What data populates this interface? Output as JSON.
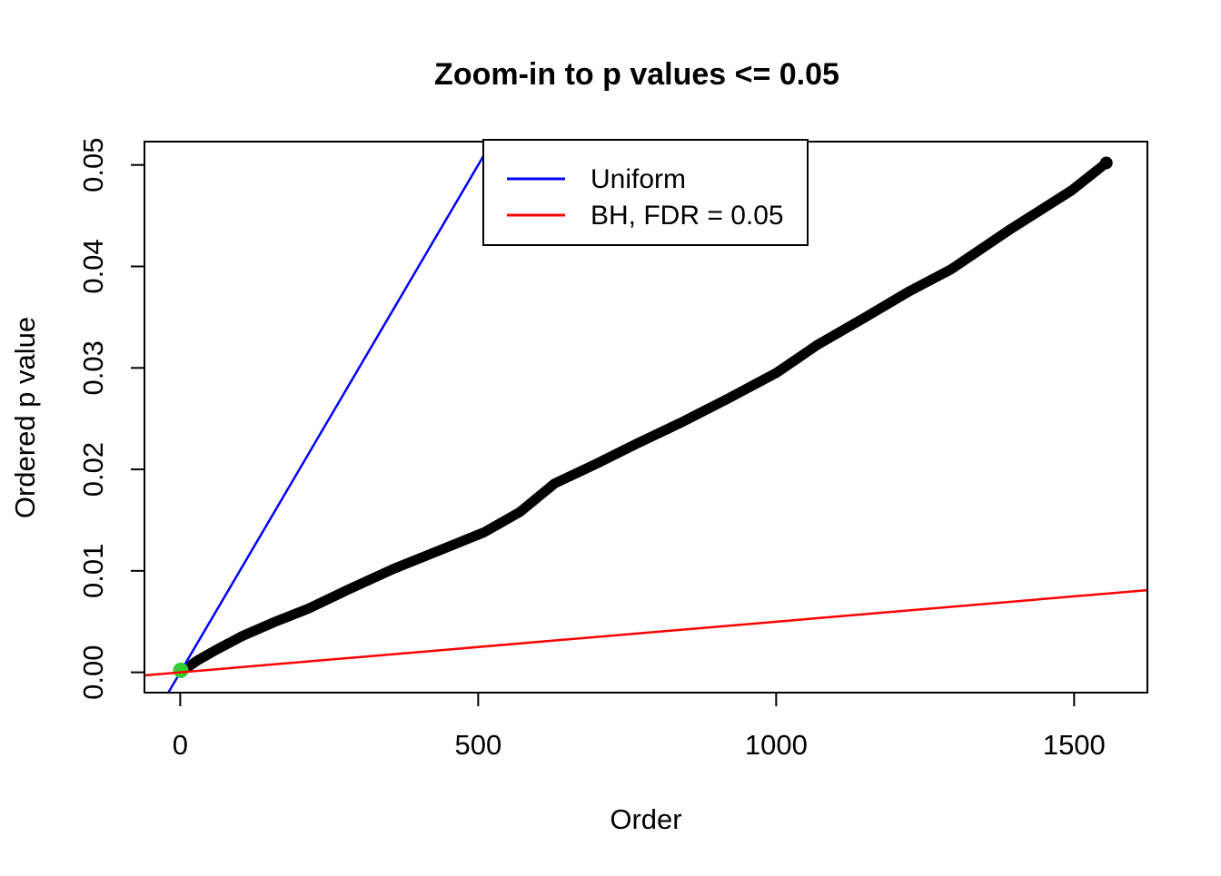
{
  "figure": {
    "background": "#ffffff",
    "title": "Zoom-in to p values <= 0.05",
    "x_axis": {
      "label": "Order",
      "tick_labels": [
        "0",
        "500",
        "1000",
        "1500"
      ]
    },
    "y_axis": {
      "label": "Ordered p value",
      "tick_labels": [
        "0.00",
        "0.01",
        "0.02",
        "0.03",
        "0.04",
        "0.05"
      ]
    },
    "legend": {
      "entries": [
        {
          "label": "Uniform",
          "color": "#0000FF"
        },
        {
          "label": "BH, FDR = 0.05",
          "color": "#FF0000"
        }
      ]
    },
    "colors": {
      "points": "#000000",
      "uniform_line": "#0000FF",
      "bh_line": "#FF0000",
      "significant_point": "#32CD32",
      "frame": "#000000"
    }
  },
  "chart_data": {
    "type": "scatter",
    "title": "Zoom-in to p values <= 0.05",
    "xlabel": "Order",
    "ylabel": "Ordered p value",
    "xlim": [
      -60,
      1623
    ],
    "ylim": [
      -0.002,
      0.0523
    ],
    "x_ticks": [
      0,
      500,
      1000,
      1500
    ],
    "y_ticks": [
      0.0,
      0.01,
      0.02,
      0.03,
      0.04,
      0.05
    ],
    "grid": false,
    "legend_position": "top-left-inside",
    "series": [
      {
        "name": "Ordered p values (sampled curve)",
        "type": "scatter",
        "color": "#000000",
        "marker": "filled-circle",
        "points": [
          [
            5,
            0.0002
          ],
          [
            30,
            0.0012
          ],
          [
            60,
            0.0022
          ],
          [
            105,
            0.0036
          ],
          [
            160,
            0.005
          ],
          [
            216,
            0.0063
          ],
          [
            280,
            0.0081
          ],
          [
            358,
            0.0102
          ],
          [
            430,
            0.0119
          ],
          [
            510,
            0.0138
          ],
          [
            570,
            0.0158
          ],
          [
            628,
            0.0186
          ],
          [
            700,
            0.0206
          ],
          [
            765,
            0.0225
          ],
          [
            840,
            0.0246
          ],
          [
            917,
            0.0269
          ],
          [
            1000,
            0.0295
          ],
          [
            1070,
            0.0323
          ],
          [
            1150,
            0.035
          ],
          [
            1222,
            0.0375
          ],
          [
            1293,
            0.0397
          ],
          [
            1394,
            0.0437
          ],
          [
            1496,
            0.0475
          ],
          [
            1554,
            0.0502
          ]
        ]
      },
      {
        "name": "Uniform",
        "type": "line",
        "color": "#0000FF",
        "points": [
          [
            -20,
            -0.002
          ],
          [
            523,
            0.0523
          ]
        ]
      },
      {
        "name": "BH, FDR = 0.05",
        "type": "line",
        "color": "#FF0000",
        "points": [
          [
            -60,
            -0.0003
          ],
          [
            1623,
            0.0081
          ]
        ]
      },
      {
        "name": "green-point",
        "type": "scatter",
        "color": "#32CD32",
        "marker": "filled-circle",
        "points": [
          [
            1,
            0.0002
          ]
        ]
      }
    ]
  }
}
